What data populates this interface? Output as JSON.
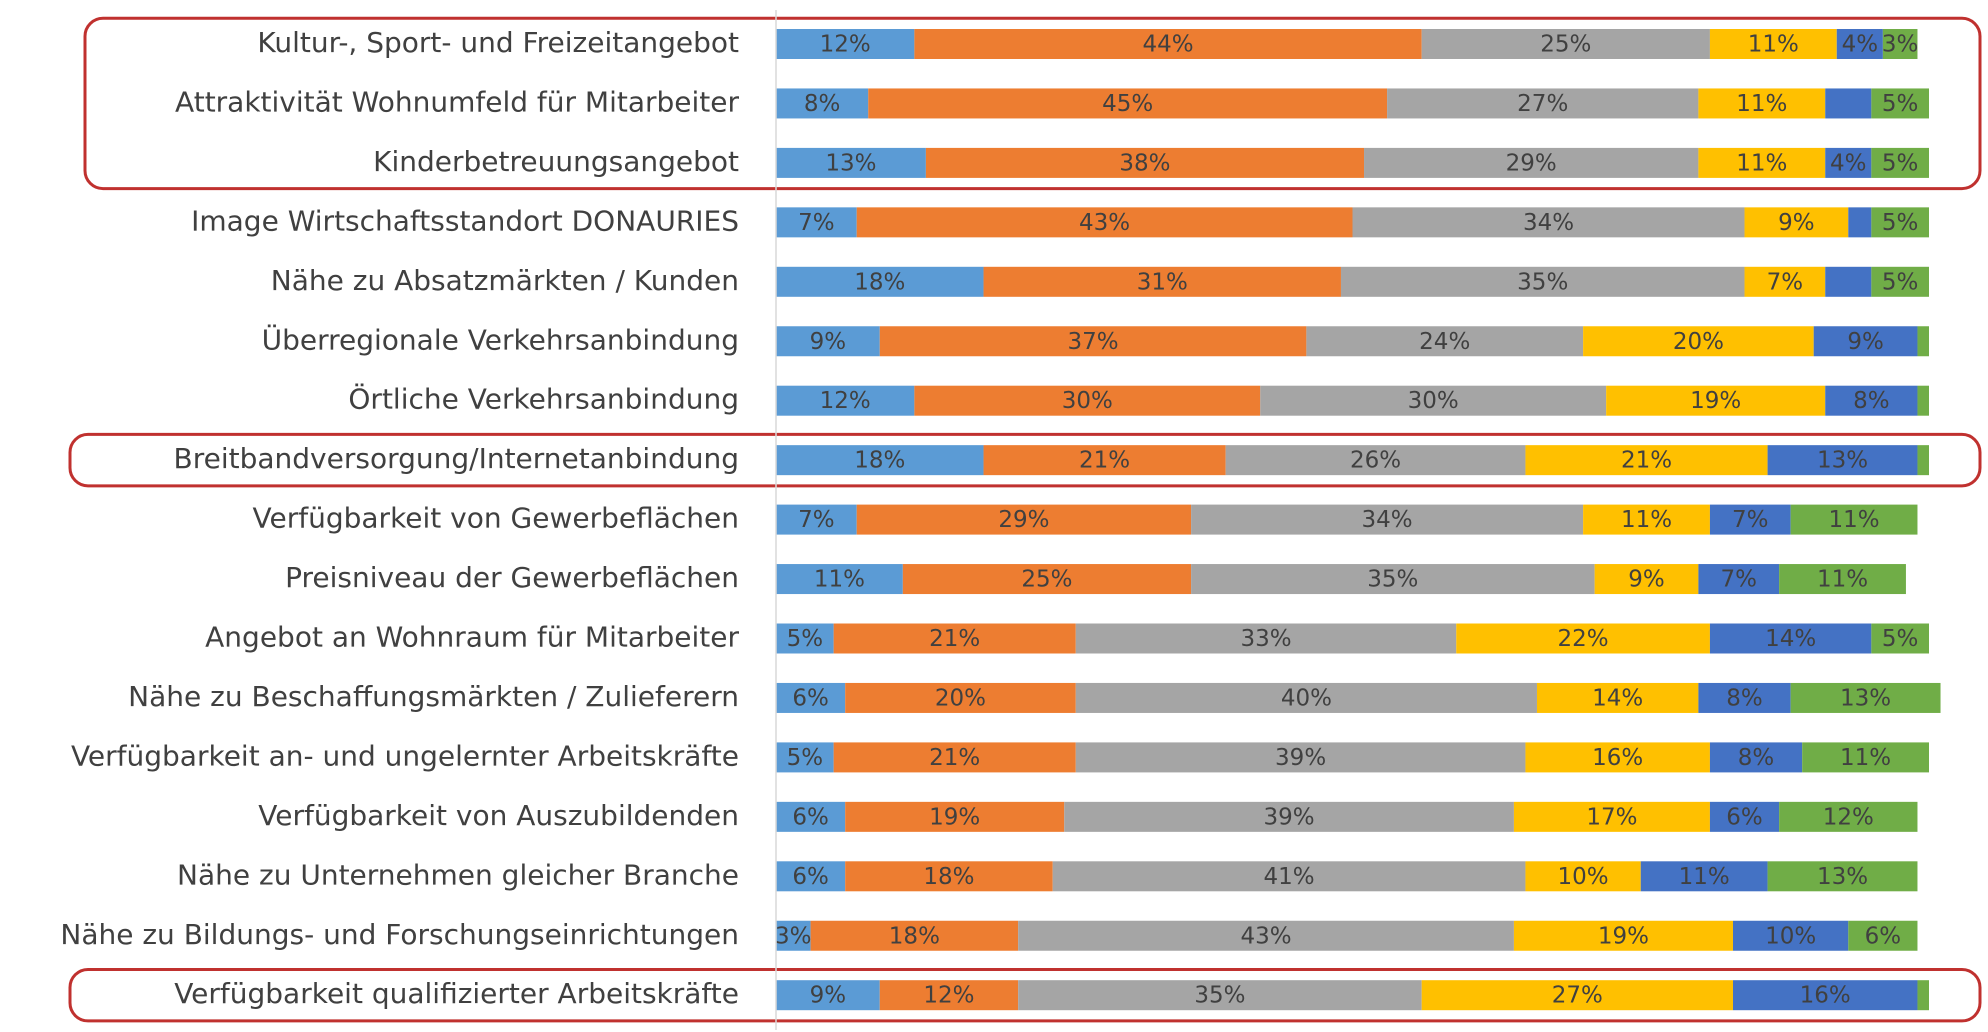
{
  "chart_data": {
    "type": "stacked-bar",
    "orientation": "horizontal",
    "categories": [
      "Kultur-, Sport- und Freizeitangebot",
      "Attraktivität Wohnumfeld für Mitarbeiter",
      "Kinderbetreuungsangebot",
      "Image Wirtschaftsstandort DONAURIES",
      "Nähe zu Absatzmärkten / Kunden",
      "Überregionale Verkehrsanbindung",
      "Örtliche Verkehrsanbindung",
      "Breitbandversorgung/Internetanbindung",
      "Verfügbarkeit von Gewerbeflächen",
      "Preisniveau der Gewerbeflächen ",
      "Angebot an Wohnraum für Mitarbeiter",
      "Nähe zu Beschaffungsmärkten / Zulieferern",
      "Verfügbarkeit an- und ungelernter Arbeitskräfte",
      "Verfügbarkeit von Auszubildenden",
      "Nähe zu Unternehmen gleicher Branche",
      "Nähe zu Bildungs- und Forschungseinrichtungen",
      "Verfügbarkeit qualifizierter Arbeitskräfte"
    ],
    "xlim": [
      0,
      100
    ],
    "series": [
      {
        "color": "#5b9bd5",
        "values": [
          12,
          8,
          13,
          7,
          18,
          9,
          12,
          18,
          7,
          11,
          5,
          6,
          5,
          6,
          6,
          3,
          9
        ],
        "value_labels": [
          "12%",
          "8%",
          "13%",
          "7%",
          "18%",
          "9%",
          "12%",
          "18%",
          "7%",
          "11%",
          "5%",
          "6%",
          "5%",
          "6%",
          "6%",
          "3%",
          "9%"
        ]
      },
      {
        "color": "#ed7d31",
        "values": [
          44,
          45,
          38,
          43,
          31,
          37,
          30,
          21,
          29,
          25,
          21,
          20,
          21,
          19,
          18,
          18,
          12
        ],
        "value_labels": [
          "44%",
          "45%",
          "38%",
          "43%",
          "31%",
          "37%",
          "30%",
          "21%",
          "29%",
          "25%",
          "21%",
          "20%",
          "21%",
          "19%",
          "18%",
          "18%",
          "12%"
        ]
      },
      {
        "color": "#a5a5a5",
        "values": [
          25,
          27,
          29,
          34,
          35,
          24,
          30,
          26,
          34,
          35,
          33,
          40,
          39,
          39,
          41,
          43,
          35
        ],
        "value_labels": [
          "25%",
          "27%",
          "29%",
          "34%",
          "35%",
          "24%",
          "30%",
          "26%",
          "34%",
          "35%",
          "33%",
          "40%",
          "39%",
          "39%",
          "41%",
          "43%",
          "35%"
        ]
      },
      {
        "color": "#ffc000",
        "values": [
          11,
          11,
          11,
          9,
          7,
          20,
          19,
          21,
          11,
          9,
          22,
          14,
          16,
          17,
          10,
          19,
          27
        ],
        "value_labels": [
          "11%",
          "11%",
          "11%",
          "9%",
          "7%",
          "20%",
          "19%",
          "21%",
          "11%",
          "9%",
          "22%",
          "14%",
          "16%",
          "17%",
          "10%",
          "19%",
          "27%"
        ]
      },
      {
        "color": "#4472c4",
        "values": [
          4,
          4,
          4,
          2,
          4,
          9,
          8,
          13,
          7,
          7,
          14,
          8,
          8,
          6,
          11,
          10,
          16
        ],
        "value_labels": [
          "4%",
          null,
          "4%",
          null,
          null,
          "9%",
          "8%",
          "13%",
          "7%",
          "7%",
          "14%",
          "8%",
          "8%",
          "6%",
          "11%",
          "10%",
          "16%"
        ]
      },
      {
        "color": "#70ad47",
        "values": [
          3,
          5,
          5,
          5,
          5,
          1,
          1,
          1,
          11,
          11,
          5,
          13,
          11,
          12,
          13,
          6,
          1
        ],
        "value_labels": [
          "3%",
          "5%",
          "5%",
          "5%",
          "5%",
          null,
          null,
          null,
          "11%",
          "11%",
          "5%",
          "13%",
          "11%",
          "12%",
          "13%",
          "6%",
          null
        ]
      }
    ]
  }
}
